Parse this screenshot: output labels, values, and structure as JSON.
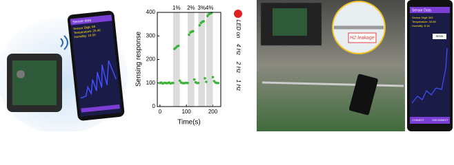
{
  "left_phone": {
    "title": "Sensor data",
    "lines": [
      "Sensor Digit: 89",
      "Temperature: 25.46",
      "Humidity: 10.00"
    ]
  },
  "chart_data": {
    "type": "scatter",
    "xlabel": "Time(s)",
    "ylabel": "Sensing response",
    "color": "#3cb43c",
    "x": [
      0,
      5,
      10,
      15,
      20,
      25,
      30,
      35,
      40,
      45,
      50,
      55,
      60,
      65,
      70,
      75,
      80,
      85,
      90,
      95,
      100,
      105,
      110,
      115,
      120,
      125,
      130,
      135,
      140,
      145,
      150,
      155,
      160,
      165,
      170,
      175,
      180,
      185,
      190,
      195,
      200,
      205,
      210,
      215,
      220
    ],
    "values": [
      100,
      102,
      98,
      100,
      101,
      99,
      100,
      102,
      98,
      100,
      100,
      245,
      250,
      255,
      258,
      110,
      102,
      100,
      99,
      100,
      101,
      100,
      305,
      315,
      318,
      320,
      115,
      103,
      100,
      100,
      345,
      355,
      360,
      362,
      120,
      105,
      385,
      392,
      395,
      398,
      125,
      108,
      102,
      100,
      100
    ],
    "shaded_regions": [
      [
        50,
        75
      ],
      [
        105,
        130
      ],
      [
        145,
        170
      ],
      [
        175,
        200
      ]
    ],
    "region_labels": [
      "1%",
      "2%",
      "3%",
      "4%"
    ],
    "xlim": [
      -10,
      230
    ],
    "ylim": [
      0,
      400
    ],
    "xticks": [
      0,
      100,
      200
    ],
    "yticks": [
      0,
      100,
      200,
      300,
      400
    ],
    "led_labels": [
      "LED on",
      "4 Hz",
      "2 Hz",
      "1 Hz"
    ]
  },
  "right_photo": {
    "callout": "H2 leakage"
  },
  "right_phone": {
    "title": "Sensor Data",
    "lines": [
      "Sensor Digit: 382",
      "Temperature: 33.65",
      "Humidity: 8.18"
    ],
    "button": "SEND",
    "buttons": [
      "CONNECT",
      "DISCONNECT"
    ]
  }
}
